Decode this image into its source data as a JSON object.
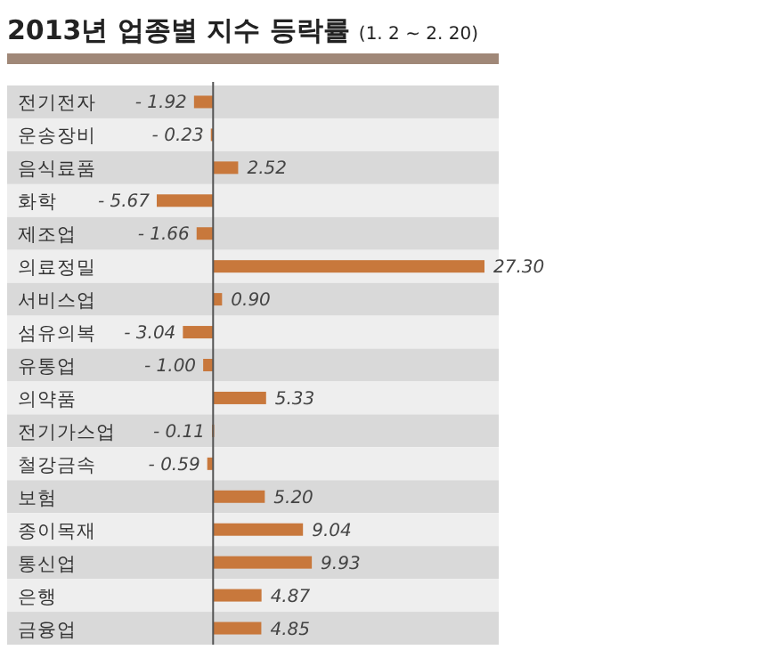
{
  "chart_data": {
    "type": "bar",
    "orientation": "horizontal",
    "title": "2013년 업종별 지수 등락률",
    "subtitle": "(1. 2 ~ 2. 20)",
    "categories": [
      "전기전자",
      "운송장비",
      "음식료품",
      "화학",
      "제조업",
      "의료정밀",
      "서비스업",
      "섬유의복",
      "유통업",
      "의약품",
      "전기가스업",
      "철강금속",
      "보험",
      "종이목재",
      "통신업",
      "은행",
      "금융업"
    ],
    "values": [
      -1.92,
      -0.23,
      2.52,
      -5.67,
      -1.66,
      27.3,
      0.9,
      -3.04,
      -1.0,
      5.33,
      -0.11,
      -0.59,
      5.2,
      9.04,
      9.93,
      4.87,
      4.85
    ],
    "value_labels": [
      "- 1.92",
      "- 0.23",
      "2.52",
      "- 5.67",
      "- 1.66",
      "27.30",
      "0.90",
      "- 3.04",
      "- 1.00",
      "5.33",
      "- 0.11",
      "- 0.59",
      "5.20",
      "9.04",
      "9.93",
      "4.87",
      "4.85"
    ],
    "color": "#c8783c"
  }
}
